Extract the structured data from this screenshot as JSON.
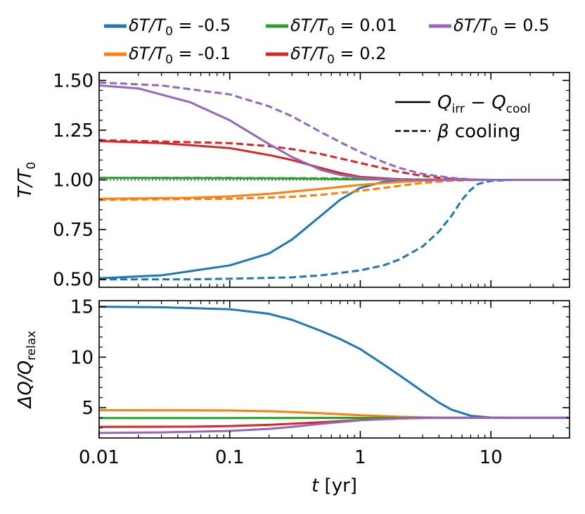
{
  "chart_data": {
    "type": "line",
    "x_scale": "log",
    "xlabel": {
      "italic": "t",
      "rest": " [yr]"
    },
    "xlim": [
      0.01,
      40
    ],
    "x_ticks": [
      {
        "value": 0.01,
        "label": "0.01"
      },
      {
        "value": 0.1,
        "label": "0.1"
      },
      {
        "value": 1,
        "label": "1"
      },
      {
        "value": 10,
        "label": "10"
      }
    ],
    "colors": {
      "dT_-0.5": "#1f77b4",
      "dT_-0.1": "#ff7f0e",
      "dT_0.01": "#2ca02c",
      "dT_0.2": "#d62728",
      "dT_0.5": "#9467bd"
    },
    "legend": {
      "placement": "top-outside",
      "entries": [
        {
          "key": "dT_-0.5",
          "prefix": "δT/T",
          "sub": "0",
          "suffix": " = -0.5"
        },
        {
          "key": "dT_0.01",
          "prefix": "δT/T",
          "sub": "0",
          "suffix": " = 0.01"
        },
        {
          "key": "dT_0.5",
          "prefix": "δT/T",
          "sub": "0",
          "suffix": " = 0.5"
        },
        {
          "key": "dT_-0.1",
          "prefix": "δT/T",
          "sub": "0",
          "suffix": " = -0.1"
        },
        {
          "key": "dT_0.2",
          "prefix": "δT/T",
          "sub": "0",
          "suffix": " = 0.2"
        }
      ]
    },
    "style_legend": {
      "placement": "top-right",
      "solid": {
        "q1": "Q",
        "s1": "irr",
        "mid": " − ",
        "q2": "Q",
        "s2": "cool"
      },
      "dashed": {
        "beta": "β",
        "rest": " cooling"
      }
    },
    "panels": [
      {
        "id": "top",
        "ylabel": {
          "base": "T/T",
          "sub": "0"
        },
        "ylim": [
          0.46,
          1.54
        ],
        "y_ticks": [
          {
            "value": 0.5,
            "label": "0.50"
          },
          {
            "value": 0.75,
            "label": "0.75"
          },
          {
            "value": 1.0,
            "label": "1.00"
          },
          {
            "value": 1.25,
            "label": "1.25"
          },
          {
            "value": 1.5,
            "label": "1.50"
          }
        ],
        "reference_line": {
          "y": 1.0,
          "style": "dotted"
        },
        "series": [
          {
            "name": "δT/T0 = -0.5 (Qirr − Qcool)",
            "color_key": "dT_-0.5",
            "dash": false,
            "x": [
              0.01,
              0.03,
              0.1,
              0.2,
              0.3,
              0.5,
              0.7,
              1,
              1.5,
              2,
              3,
              5,
              10,
              40
            ],
            "y": [
              0.505,
              0.52,
              0.57,
              0.63,
              0.7,
              0.82,
              0.9,
              0.96,
              0.99,
              0.997,
              0.999,
              1.0,
              1.0,
              1.0
            ]
          },
          {
            "name": "δT/T0 = -0.5 (β cooling)",
            "color_key": "dT_-0.5",
            "dash": true,
            "x": [
              0.01,
              0.05,
              0.1,
              0.3,
              0.5,
              1,
              1.5,
              2,
              3,
              4,
              5,
              6,
              7,
              8,
              10,
              15,
              40
            ],
            "y": [
              0.5,
              0.5,
              0.503,
              0.51,
              0.52,
              0.545,
              0.57,
              0.6,
              0.665,
              0.74,
              0.82,
              0.9,
              0.95,
              0.98,
              0.995,
              1.0,
              1.0
            ]
          },
          {
            "name": "δT/T0 = -0.1 (Qirr − Qcool)",
            "color_key": "dT_-0.1",
            "dash": false,
            "x": [
              0.01,
              0.05,
              0.1,
              0.2,
              0.5,
              1,
              2,
              3,
              5,
              10,
              40
            ],
            "y": [
              0.905,
              0.91,
              0.917,
              0.93,
              0.955,
              0.975,
              0.99,
              0.996,
              0.999,
              1.0,
              1.0
            ]
          },
          {
            "name": "δT/T0 = -0.1 (β cooling)",
            "color_key": "dT_-0.1",
            "dash": true,
            "x": [
              0.01,
              0.1,
              0.3,
              0.5,
              1,
              2,
              3,
              5,
              7,
              10,
              40
            ],
            "y": [
              0.9,
              0.905,
              0.915,
              0.925,
              0.945,
              0.97,
              0.985,
              0.996,
              0.999,
              1.0,
              1.0
            ]
          },
          {
            "name": "δT/T0 = 0.01 (Qirr − Qcool)",
            "color_key": "dT_0.01",
            "dash": false,
            "x": [
              0.01,
              0.1,
              0.3,
              1,
              3,
              10,
              40
            ],
            "y": [
              1.01,
              1.009,
              1.007,
              1.003,
              1.001,
              1.0,
              1.0
            ]
          },
          {
            "name": "δT/T0 = 0.01 (β cooling)",
            "color_key": "dT_0.01",
            "dash": true,
            "x": [
              0.01,
              0.1,
              0.5,
              1,
              3,
              10,
              40
            ],
            "y": [
              1.01,
              1.01,
              1.008,
              1.006,
              1.002,
              1.0,
              1.0
            ]
          },
          {
            "name": "δT/T0 = 0.2 (Qirr − Qcool)",
            "color_key": "dT_0.2",
            "dash": false,
            "x": [
              0.01,
              0.03,
              0.1,
              0.2,
              0.3,
              0.5,
              0.7,
              1,
              2,
              3,
              5,
              10,
              40
            ],
            "y": [
              1.195,
              1.185,
              1.16,
              1.125,
              1.1,
              1.06,
              1.035,
              1.015,
              1.003,
              1.001,
              1.0,
              1.0,
              1.0
            ]
          },
          {
            "name": "δT/T0 = 0.2 (β cooling)",
            "color_key": "dT_0.2",
            "dash": true,
            "x": [
              0.01,
              0.1,
              0.2,
              0.3,
              0.5,
              1,
              2,
              3,
              5,
              7,
              10,
              40
            ],
            "y": [
              1.2,
              1.185,
              1.17,
              1.155,
              1.13,
              1.085,
              1.04,
              1.02,
              1.005,
              1.001,
              1.0,
              1.0
            ]
          },
          {
            "name": "δT/T0 = 0.5 (Qirr − Qcool)",
            "color_key": "dT_0.5",
            "dash": false,
            "x": [
              0.01,
              0.02,
              0.05,
              0.1,
              0.2,
              0.3,
              0.5,
              0.7,
              1,
              1.5,
              2,
              3,
              5,
              10,
              40
            ],
            "y": [
              1.475,
              1.46,
              1.39,
              1.3,
              1.18,
              1.115,
              1.05,
              1.025,
              1.01,
              1.003,
              1.001,
              1.0,
              1.0,
              1.0,
              1.0
            ]
          },
          {
            "name": "δT/T0 = 0.5 (β cooling)",
            "color_key": "dT_0.5",
            "dash": true,
            "x": [
              0.01,
              0.03,
              0.1,
              0.2,
              0.3,
              0.5,
              0.7,
              1,
              1.5,
              2,
              3,
              5,
              7,
              10,
              40
            ],
            "y": [
              1.49,
              1.475,
              1.43,
              1.37,
              1.32,
              1.24,
              1.19,
              1.14,
              1.09,
              1.06,
              1.03,
              1.01,
              1.003,
              1.0,
              1.0
            ]
          }
        ]
      },
      {
        "id": "bottom",
        "ylabel": {
          "base": "ΔQ/Q",
          "sub": "relax"
        },
        "ylim": [
          2.0,
          15.6
        ],
        "y_ticks": [
          {
            "value": 5,
            "label": "5"
          },
          {
            "value": 10,
            "label": "10"
          },
          {
            "value": 15,
            "label": "15"
          }
        ],
        "series": [
          {
            "name": "δT/T0 = -0.5",
            "color_key": "dT_-0.5",
            "dash": false,
            "x": [
              0.01,
              0.03,
              0.1,
              0.2,
              0.3,
              0.5,
              0.7,
              1,
              1.5,
              2,
              3,
              4,
              5,
              7,
              10,
              15,
              40
            ],
            "y": [
              15.0,
              14.95,
              14.75,
              14.3,
              13.7,
              12.6,
              11.8,
              10.8,
              9.3,
              8.2,
              6.6,
              5.5,
              4.8,
              4.2,
              4.02,
              4.0,
              4.0
            ]
          },
          {
            "name": "δT/T0 = -0.1",
            "color_key": "dT_-0.1",
            "dash": false,
            "x": [
              0.01,
              0.05,
              0.1,
              0.2,
              0.5,
              1,
              2,
              3,
              5,
              10,
              40
            ],
            "y": [
              4.75,
              4.74,
              4.72,
              4.65,
              4.45,
              4.25,
              4.1,
              4.04,
              4.01,
              4.0,
              4.0
            ]
          },
          {
            "name": "δT/T0 = 0.01",
            "color_key": "dT_0.01",
            "dash": false,
            "x": [
              0.01,
              0.1,
              1,
              10,
              40
            ],
            "y": [
              3.97,
              3.97,
              3.99,
              4.0,
              4.0
            ]
          },
          {
            "name": "δT/T0 = 0.2",
            "color_key": "dT_0.2",
            "dash": false,
            "x": [
              0.01,
              0.05,
              0.1,
              0.2,
              0.5,
              1,
              2,
              3,
              5,
              10,
              40
            ],
            "y": [
              3.1,
              3.12,
              3.18,
              3.3,
              3.55,
              3.78,
              3.93,
              3.98,
              4.0,
              4.0,
              4.0
            ]
          },
          {
            "name": "δT/T0 = 0.5",
            "color_key": "dT_0.5",
            "dash": false,
            "x": [
              0.01,
              0.03,
              0.1,
              0.2,
              0.3,
              0.5,
              1,
              2,
              3,
              5,
              10,
              40
            ],
            "y": [
              2.5,
              2.55,
              2.7,
              2.9,
              3.1,
              3.4,
              3.75,
              3.93,
              3.98,
              4.0,
              4.0,
              4.0
            ]
          }
        ]
      }
    ]
  }
}
